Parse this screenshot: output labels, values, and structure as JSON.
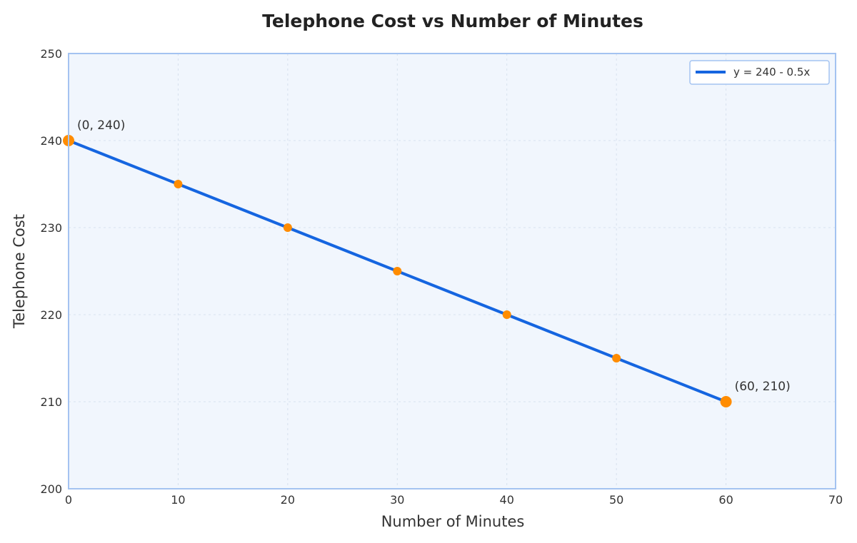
{
  "chart_data": {
    "type": "line",
    "title": "Telephone Cost vs Number of Minutes",
    "xlabel": "Number of Minutes",
    "ylabel": "Telephone Cost",
    "xlim": [
      0,
      70
    ],
    "ylim": [
      200,
      250
    ],
    "xticks": [
      0,
      10,
      20,
      30,
      40,
      50,
      60,
      70
    ],
    "yticks": [
      200,
      210,
      220,
      230,
      240,
      250
    ],
    "grid": true,
    "legend_position": "top-right",
    "series": [
      {
        "name": "y = 240 - 0.5x",
        "x": [
          0,
          60
        ],
        "y": [
          240,
          210
        ],
        "color": "#1565e0"
      }
    ],
    "points": {
      "x": [
        0,
        10,
        20,
        30,
        40,
        50,
        60
      ],
      "y": [
        240,
        235,
        230,
        225,
        220,
        215,
        210
      ],
      "color": "#ff8c00"
    },
    "annotations": [
      {
        "text": "(0, 240)",
        "x": 0,
        "y": 240
      },
      {
        "text": "(60, 210)",
        "x": 60,
        "y": 210
      }
    ],
    "colors": {
      "plot_background": "#f1f6fd",
      "frame": "#a4c3f1",
      "grid": "#d7e1ee"
    }
  }
}
